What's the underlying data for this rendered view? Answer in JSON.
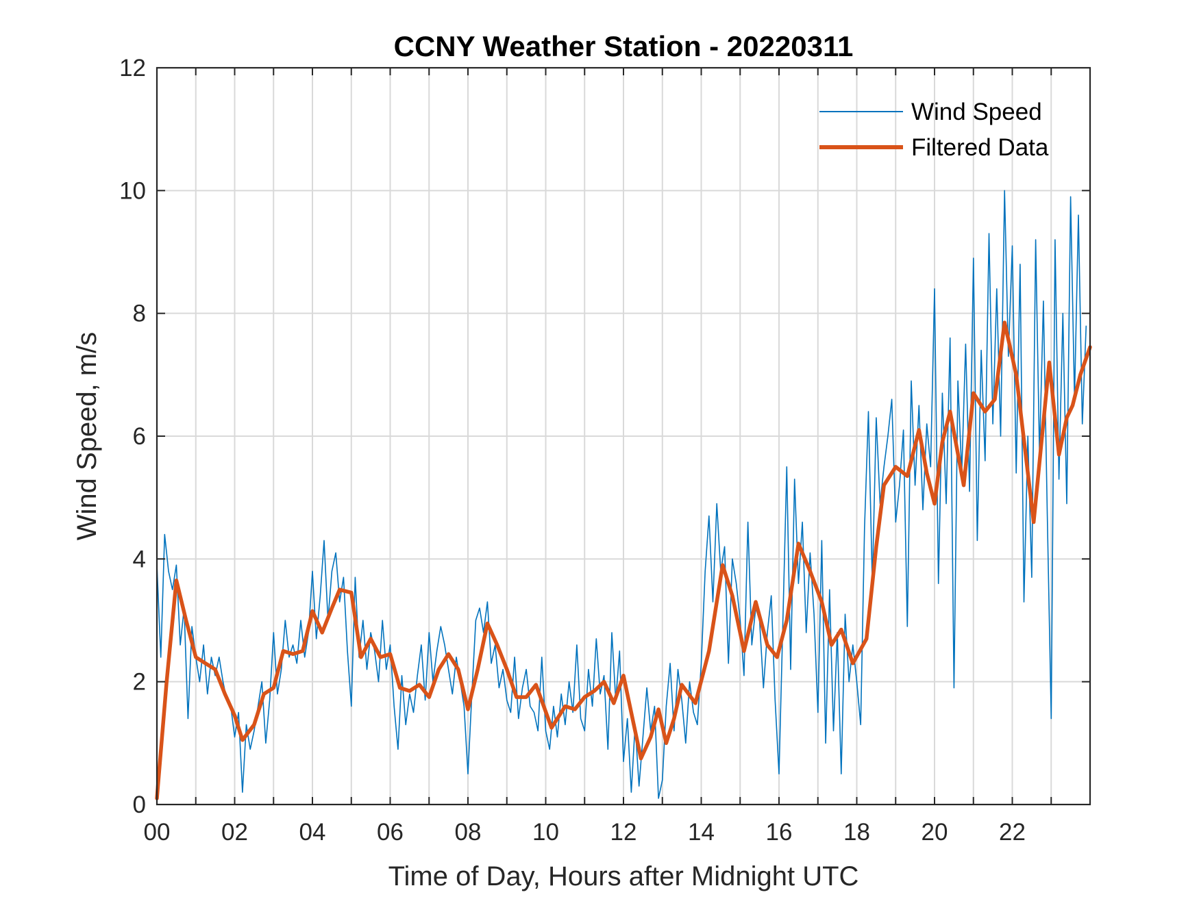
{
  "chart_data": {
    "type": "line",
    "title": "CCNY Weather Station - 20220311",
    "xlabel": "Time of Day, Hours after Midnight UTC",
    "ylabel": "Wind Speed, m/s",
    "xlim": [
      0,
      24
    ],
    "ylim": [
      0,
      12
    ],
    "xticks": [
      0,
      2,
      4,
      6,
      8,
      10,
      12,
      14,
      16,
      18,
      20,
      22
    ],
    "xtick_labels": [
      "00",
      "02",
      "04",
      "06",
      "08",
      "10",
      "12",
      "14",
      "16",
      "18",
      "20",
      "22"
    ],
    "yticks": [
      0,
      2,
      4,
      6,
      8,
      10,
      12
    ],
    "ytick_labels": [
      "0",
      "2",
      "4",
      "6",
      "8",
      "10",
      "12"
    ],
    "grid": true,
    "legend_position": "top-right",
    "series": [
      {
        "name": "Wind Speed",
        "color": "#0072BD",
        "x_start": 0,
        "x_step": 0.1,
        "values": [
          3.9,
          2.4,
          4.4,
          3.8,
          3.5,
          3.9,
          2.6,
          3.2,
          1.4,
          2.9,
          2.4,
          2.0,
          2.6,
          1.8,
          2.4,
          2.1,
          2.4,
          2.0,
          1.7,
          1.6,
          1.1,
          1.5,
          0.2,
          1.3,
          0.9,
          1.2,
          1.6,
          2.0,
          1.0,
          1.7,
          2.8,
          1.8,
          2.2,
          3.0,
          2.4,
          2.6,
          2.3,
          3.0,
          2.4,
          2.8,
          3.8,
          2.7,
          3.4,
          4.3,
          3.0,
          3.8,
          4.1,
          3.3,
          3.7,
          2.5,
          1.6,
          3.7,
          2.4,
          3.0,
          2.2,
          2.8,
          2.5,
          2.0,
          3.0,
          2.2,
          2.6,
          1.6,
          0.9,
          2.1,
          1.3,
          1.8,
          1.5,
          2.1,
          2.6,
          1.7,
          2.8,
          2.0,
          2.5,
          2.9,
          2.6,
          2.2,
          1.8,
          2.4,
          2.0,
          1.6,
          0.5,
          1.8,
          3.0,
          3.2,
          2.8,
          3.3,
          2.3,
          2.6,
          1.9,
          2.2,
          1.7,
          1.5,
          2.4,
          1.4,
          1.9,
          2.2,
          1.6,
          1.5,
          1.2,
          2.4,
          1.2,
          0.9,
          1.6,
          1.1,
          1.8,
          1.3,
          2.0,
          1.5,
          2.6,
          1.4,
          1.2,
          2.2,
          1.6,
          2.7,
          1.8,
          2.1,
          0.9,
          2.8,
          1.7,
          2.5,
          0.7,
          1.4,
          0.2,
          1.3,
          0.3,
          1.1,
          1.9,
          1.2,
          1.6,
          0.1,
          0.4,
          1.6,
          2.3,
          1.2,
          2.2,
          1.7,
          1.0,
          2.0,
          1.5,
          1.3,
          2.3,
          3.8,
          4.7,
          3.3,
          4.9,
          3.8,
          4.2,
          2.3,
          4.0,
          3.6,
          3.0,
          2.1,
          4.6,
          2.6,
          3.2,
          3.0,
          1.9,
          2.8,
          3.4,
          1.7,
          0.5,
          3.0,
          5.5,
          2.2,
          5.3,
          3.6,
          4.6,
          2.8,
          4.1,
          3.1,
          1.5,
          4.3,
          1.0,
          3.5,
          1.2,
          2.8,
          0.5,
          3.1,
          2.0,
          2.6,
          2.0,
          1.3,
          4.5,
          6.4,
          3.6,
          6.3,
          4.9,
          5.5,
          6.0,
          6.6,
          4.6,
          5.2,
          6.1,
          2.9,
          6.9,
          5.2,
          6.5,
          4.8,
          6.2,
          5.5,
          8.4,
          3.6,
          6.7,
          4.9,
          7.6,
          1.9,
          6.9,
          5.4,
          7.5,
          5.1,
          8.9,
          4.3,
          7.4,
          5.6,
          9.3,
          6.2,
          8.4,
          6.0,
          10.0,
          7.3,
          9.1,
          5.4,
          8.8,
          3.3,
          6.0,
          3.7,
          9.2,
          5.7,
          8.2,
          4.7,
          1.4,
          9.2,
          5.3,
          8.0,
          4.9,
          9.9,
          6.6,
          9.6,
          6.2,
          7.8
        ]
      },
      {
        "name": "Filtered Data",
        "color": "#D95319",
        "points": [
          [
            0,
            0.1
          ],
          [
            0.25,
            2.0
          ],
          [
            0.5,
            3.65
          ],
          [
            0.75,
            3.0
          ],
          [
            1.0,
            2.4
          ],
          [
            1.25,
            2.3
          ],
          [
            1.5,
            2.2
          ],
          [
            1.75,
            1.8
          ],
          [
            2.0,
            1.45
          ],
          [
            2.2,
            1.05
          ],
          [
            2.5,
            1.3
          ],
          [
            2.75,
            1.8
          ],
          [
            3.0,
            1.9
          ],
          [
            3.25,
            2.5
          ],
          [
            3.5,
            2.45
          ],
          [
            3.75,
            2.5
          ],
          [
            4.0,
            3.15
          ],
          [
            4.25,
            2.8
          ],
          [
            4.5,
            3.2
          ],
          [
            4.7,
            3.5
          ],
          [
            5.0,
            3.45
          ],
          [
            5.25,
            2.4
          ],
          [
            5.5,
            2.7
          ],
          [
            5.75,
            2.4
          ],
          [
            6.0,
            2.45
          ],
          [
            6.25,
            1.9
          ],
          [
            6.5,
            1.85
          ],
          [
            6.75,
            1.95
          ],
          [
            7.0,
            1.75
          ],
          [
            7.25,
            2.2
          ],
          [
            7.5,
            2.45
          ],
          [
            7.75,
            2.2
          ],
          [
            8.0,
            1.55
          ],
          [
            8.25,
            2.2
          ],
          [
            8.5,
            2.95
          ],
          [
            8.75,
            2.6
          ],
          [
            9.0,
            2.2
          ],
          [
            9.25,
            1.75
          ],
          [
            9.5,
            1.75
          ],
          [
            9.75,
            1.95
          ],
          [
            10.15,
            1.25
          ],
          [
            10.5,
            1.6
          ],
          [
            10.75,
            1.55
          ],
          [
            11.0,
            1.75
          ],
          [
            11.25,
            1.85
          ],
          [
            11.5,
            2.0
          ],
          [
            11.75,
            1.65
          ],
          [
            12.0,
            2.1
          ],
          [
            12.2,
            1.5
          ],
          [
            12.45,
            0.75
          ],
          [
            12.7,
            1.1
          ],
          [
            12.9,
            1.55
          ],
          [
            13.1,
            1.0
          ],
          [
            13.3,
            1.4
          ],
          [
            13.5,
            1.95
          ],
          [
            13.85,
            1.65
          ],
          [
            14.2,
            2.5
          ],
          [
            14.55,
            3.9
          ],
          [
            14.8,
            3.4
          ],
          [
            15.1,
            2.5
          ],
          [
            15.4,
            3.3
          ],
          [
            15.7,
            2.6
          ],
          [
            15.95,
            2.4
          ],
          [
            16.2,
            3.0
          ],
          [
            16.5,
            4.25
          ],
          [
            16.8,
            3.8
          ],
          [
            17.1,
            3.3
          ],
          [
            17.35,
            2.6
          ],
          [
            17.6,
            2.85
          ],
          [
            17.9,
            2.3
          ],
          [
            18.25,
            2.7
          ],
          [
            18.5,
            4.2
          ],
          [
            18.7,
            5.2
          ],
          [
            19.0,
            5.5
          ],
          [
            19.3,
            5.35
          ],
          [
            19.6,
            6.1
          ],
          [
            19.8,
            5.4
          ],
          [
            20.0,
            4.9
          ],
          [
            20.2,
            5.9
          ],
          [
            20.4,
            6.4
          ],
          [
            20.75,
            5.2
          ],
          [
            21.0,
            6.7
          ],
          [
            21.3,
            6.4
          ],
          [
            21.55,
            6.6
          ],
          [
            21.8,
            7.85
          ],
          [
            22.1,
            7.0
          ],
          [
            22.55,
            4.6
          ],
          [
            22.95,
            7.2
          ],
          [
            23.2,
            5.7
          ],
          [
            23.4,
            6.3
          ],
          [
            23.55,
            6.5
          ],
          [
            23.75,
            7.0
          ],
          [
            24.0,
            7.45
          ]
        ]
      }
    ]
  }
}
